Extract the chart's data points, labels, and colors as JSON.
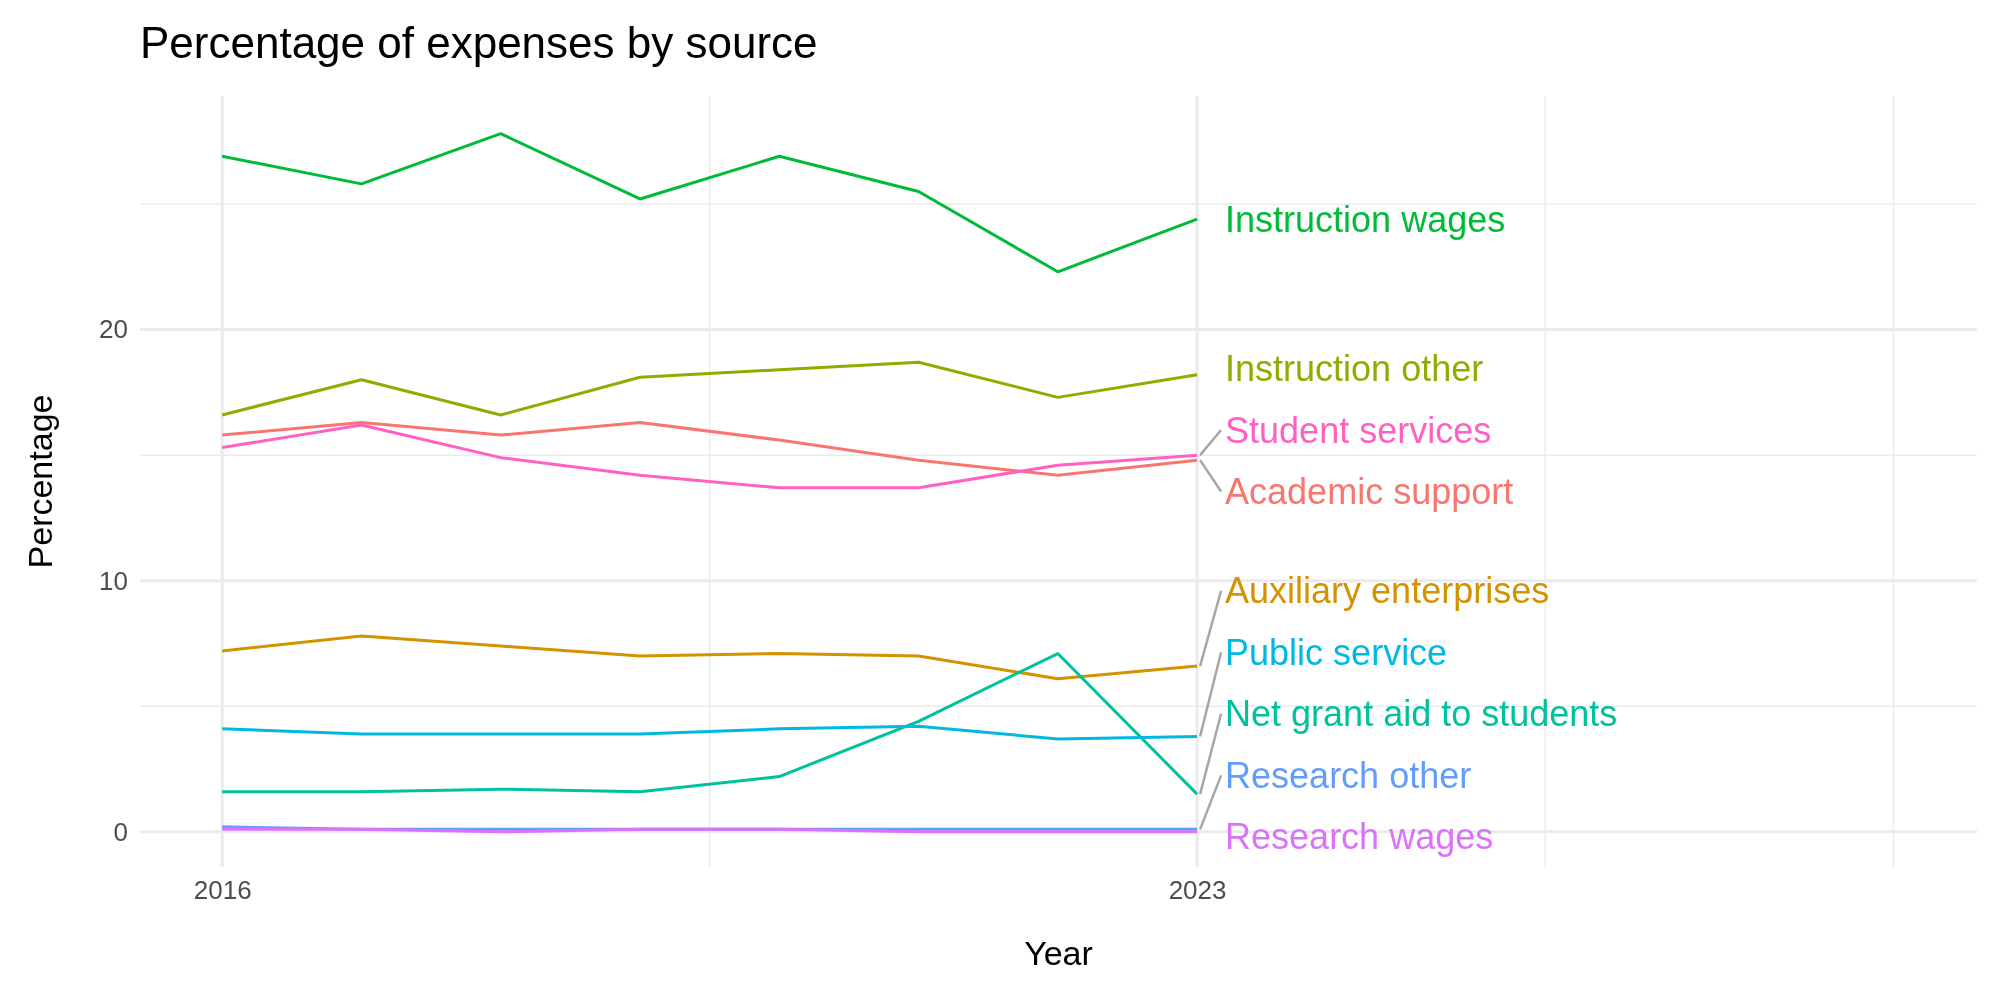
{
  "chart_data": {
    "type": "line",
    "title": "Percentage of expenses by source",
    "xlabel": "Year",
    "ylabel": "Percentage",
    "x": [
      2016,
      2017,
      2018,
      2019,
      2020,
      2021,
      2022,
      2023
    ],
    "xlim": [
      2015.41,
      2028.6
    ],
    "xticks": [
      2016,
      {
        "value": 2019.5,
        "label": null
      },
      2023,
      {
        "value": 2025.5,
        "label": null
      },
      {
        "value": 2028,
        "label": null
      }
    ],
    "ylim": [
      -1.4,
      29.3
    ],
    "yticks": [
      0,
      {
        "value": 5,
        "label": null
      },
      10,
      {
        "value": 15,
        "label": null
      },
      20,
      {
        "value": 25,
        "label": null
      }
    ],
    "grid": true,
    "legend": false,
    "series": [
      {
        "name": "Academic support",
        "color": "#f8766d",
        "values": [
          15.8,
          16.3,
          15.8,
          16.3,
          15.6,
          14.8,
          14.2,
          14.8
        ]
      },
      {
        "name": "Auxiliary enterprises",
        "color": "#d39200",
        "values": [
          7.2,
          7.8,
          7.4,
          7.0,
          7.1,
          7.0,
          6.1,
          6.6
        ]
      },
      {
        "name": "Instruction other",
        "color": "#93aa00",
        "values": [
          16.6,
          18.0,
          16.6,
          18.1,
          18.4,
          18.7,
          17.3,
          18.2
        ]
      },
      {
        "name": "Instruction wages",
        "color": "#00ba38",
        "values": [
          26.9,
          25.8,
          27.8,
          25.2,
          26.9,
          25.5,
          22.3,
          24.4
        ]
      },
      {
        "name": "Net grant aid to students",
        "color": "#00c19f",
        "values": [
          1.6,
          1.6,
          1.7,
          1.6,
          2.2,
          4.4,
          7.1,
          1.5
        ]
      },
      {
        "name": "Public service",
        "color": "#00b9e3",
        "values": [
          4.1,
          3.9,
          3.9,
          3.9,
          4.1,
          4.2,
          3.7,
          3.8
        ]
      },
      {
        "name": "Research other",
        "color": "#619cff",
        "values": [
          0.2,
          0.1,
          0.1,
          0.1,
          0.1,
          0.1,
          0.1,
          0.1
        ]
      },
      {
        "name": "Research wages",
        "color": "#db72fb",
        "values": [
          0.1,
          0.1,
          0.0,
          0.1,
          0.1,
          0.0,
          0.0,
          0.0
        ]
      },
      {
        "name": "Student services",
        "color": "#ff61c3",
        "values": [
          15.3,
          16.2,
          14.9,
          14.2,
          13.7,
          13.7,
          14.6,
          15.0
        ]
      }
    ]
  }
}
